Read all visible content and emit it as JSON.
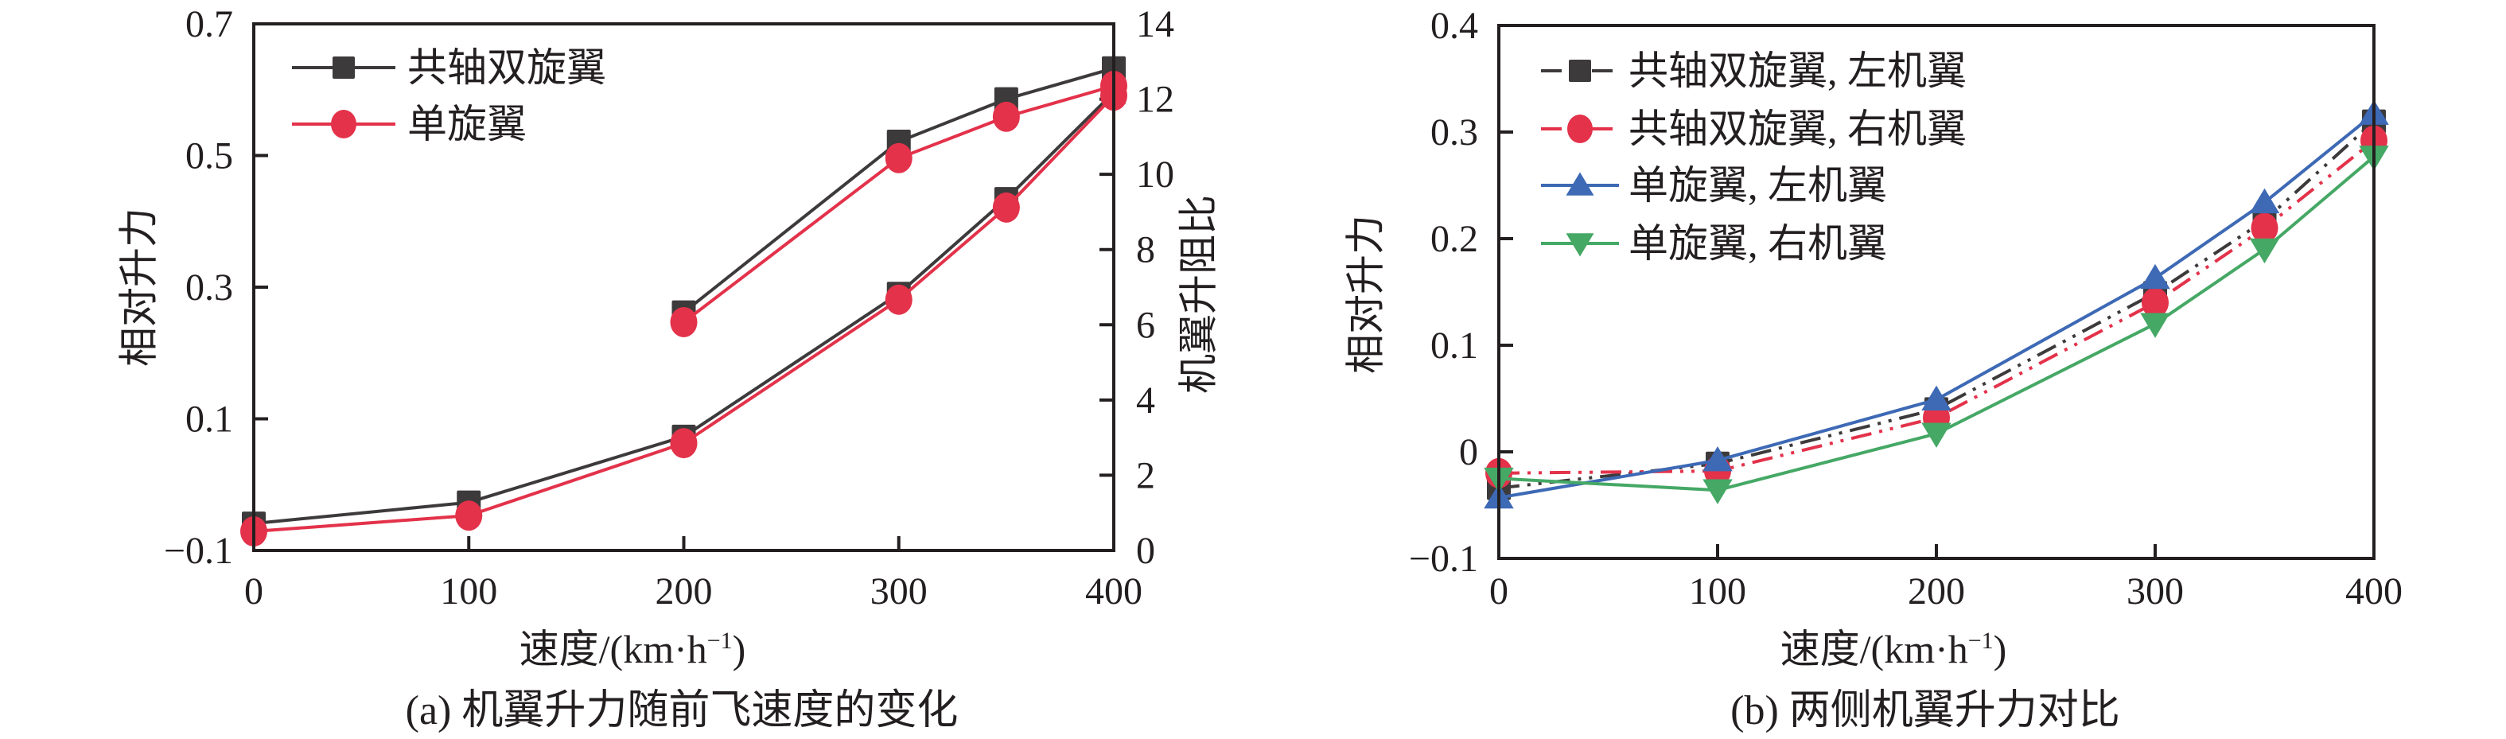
{
  "chart_data": [
    {
      "id": "a",
      "type": "line",
      "caption": "(a) 机翼升力随前飞速度的变化",
      "xlabel": "速度/(km·h",
      "xlabel_sup": "−1",
      "xlabel_close": ")",
      "ylabel": "相对升力",
      "y2label": "机翼升阻比",
      "xlim": [
        0,
        400
      ],
      "ylim": [
        -0.1,
        0.7
      ],
      "y2lim": [
        0,
        14
      ],
      "xticks": [
        0,
        100,
        200,
        300,
        400
      ],
      "xtick_labels": [
        "0",
        "100",
        "200",
        "300",
        "400"
      ],
      "yticks": [
        -0.1,
        0.1,
        0.3,
        0.5,
        0.7
      ],
      "ytick_labels": [
        "−0.1",
        "0.1",
        "0.3",
        "0.5",
        "0.7"
      ],
      "y2ticks": [
        0,
        2,
        4,
        6,
        8,
        10,
        12,
        14
      ],
      "y2tick_labels": [
        "0",
        "2",
        "4",
        "6",
        "8",
        "10",
        "12",
        "14"
      ],
      "grid": false,
      "legend_position": "top-left",
      "legend": [
        {
          "label": "共轴双旋翼",
          "color": "#3d3a3b",
          "marker": "square",
          "dash": "solid"
        },
        {
          "label": "单旋翼",
          "color": "#e3324a",
          "marker": "circle",
          "dash": "solid"
        }
      ],
      "series": [
        {
          "name": "共轴双旋翼 相对升力",
          "axis": "left",
          "color": "#3d3a3b",
          "marker": "square",
          "x": [
            0,
            100,
            200,
            300,
            350,
            400
          ],
          "y": [
            -0.059,
            -0.027,
            0.073,
            0.29,
            0.434,
            0.596
          ]
        },
        {
          "name": "单旋翼 相对升力",
          "axis": "left",
          "color": "#e3324a",
          "marker": "circle",
          "x": [
            0,
            100,
            200,
            300,
            350,
            400
          ],
          "y": [
            -0.071,
            -0.047,
            0.063,
            0.281,
            0.421,
            0.591
          ]
        },
        {
          "name": "共轴双旋翼 机翼升阻比",
          "axis": "right",
          "color": "#3d3a3b",
          "marker": "square",
          "x": [
            200,
            300,
            350,
            400
          ],
          "y": [
            6.33,
            10.87,
            12.0,
            12.82
          ]
        },
        {
          "name": "单旋翼 机翼升阻比",
          "axis": "right",
          "color": "#e3324a",
          "marker": "circle",
          "x": [
            200,
            300,
            350,
            400
          ],
          "y": [
            6.07,
            10.43,
            11.53,
            12.35
          ]
        }
      ]
    },
    {
      "id": "b",
      "type": "line",
      "caption": "(b) 两侧机翼升力对比",
      "xlabel": "速度/(km·h",
      "xlabel_sup": "−1",
      "xlabel_close": ")",
      "ylabel": "相对升力",
      "xlim": [
        0,
        400
      ],
      "ylim": [
        -0.1,
        0.4
      ],
      "xticks": [
        0,
        100,
        200,
        300,
        400
      ],
      "xtick_labels": [
        "0",
        "100",
        "200",
        "300",
        "400"
      ],
      "yticks": [
        -0.1,
        0,
        0.1,
        0.2,
        0.3,
        0.4
      ],
      "ytick_labels": [
        "−0.1",
        "0",
        "0.1",
        "0.2",
        "0.3",
        "0.4"
      ],
      "grid": false,
      "legend_position": "top-left",
      "legend": [
        {
          "label": "共轴双旋翼, 左机翼",
          "color": "#3d3a3b",
          "marker": "square",
          "dash": "dash-dot-dot"
        },
        {
          "label": "共轴双旋翼, 右机翼",
          "color": "#e3324a",
          "marker": "circle",
          "dash": "dash-dot-dot"
        },
        {
          "label": "单旋翼, 左机翼",
          "color": "#3d69b5",
          "marker": "triangle-up",
          "dash": "solid"
        },
        {
          "label": "单旋翼, 右机翼",
          "color": "#45a865",
          "marker": "triangle-down",
          "dash": "solid"
        }
      ],
      "series": [
        {
          "name": "共轴双旋翼, 左机翼",
          "color": "#3d3a3b",
          "marker": "square",
          "dash": "dash-dot-dot",
          "x": [
            0,
            100,
            200,
            300,
            350,
            400
          ],
          "y": [
            -0.034,
            -0.011,
            0.04,
            0.149,
            0.217,
            0.31
          ]
        },
        {
          "name": "共轴双旋翼, 右机翼",
          "color": "#e3324a",
          "marker": "circle",
          "dash": "dash-dot-dot",
          "x": [
            0,
            100,
            200,
            300,
            350,
            400
          ],
          "y": [
            -0.02,
            -0.018,
            0.032,
            0.14,
            0.21,
            0.292
          ]
        },
        {
          "name": "单旋翼, 左机翼",
          "color": "#3d69b5",
          "marker": "triangle-up",
          "dash": "solid",
          "x": [
            0,
            100,
            200,
            300,
            350,
            400
          ],
          "y": [
            -0.043,
            -0.008,
            0.049,
            0.163,
            0.234,
            0.317
          ]
        },
        {
          "name": "单旋翼, 右机翼",
          "color": "#45a865",
          "marker": "triangle-down",
          "dash": "solid",
          "x": [
            0,
            100,
            200,
            300,
            350,
            400
          ],
          "y": [
            -0.025,
            -0.036,
            0.017,
            0.12,
            0.19,
            0.277
          ]
        }
      ]
    }
  ]
}
